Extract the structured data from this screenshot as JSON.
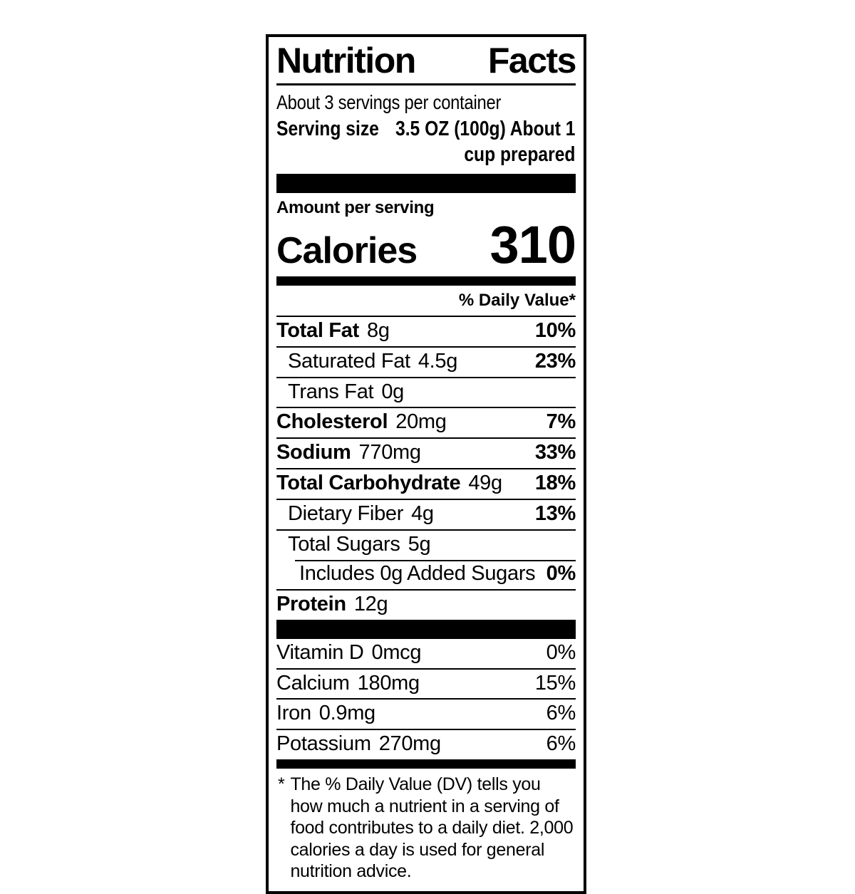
{
  "colors": {
    "ink": "#000000",
    "paper": "#ffffff"
  },
  "label": {
    "title_word_1": "Nutrition",
    "title_word_2": "Facts",
    "servings_per_container": "About 3 servings per container",
    "serving_size": {
      "label": "Serving size",
      "value_line_1": "3.5 OZ (100g) About 1",
      "value_line_2": "cup prepared"
    },
    "amount_per_serving": "Amount per serving",
    "calories": {
      "label": "Calories",
      "value": "310"
    },
    "daily_value_header": "% Daily Value*",
    "nutrients": [
      {
        "name": "Total Fat",
        "amount": "8g",
        "dv": "10%"
      },
      {
        "name": "Saturated Fat",
        "amount": "4.5g",
        "dv": "23%"
      },
      {
        "name": "Trans Fat",
        "amount": "0g",
        "dv": ""
      },
      {
        "name": "Cholesterol",
        "amount": "20mg",
        "dv": "7%"
      },
      {
        "name": "Sodium",
        "amount": "770mg",
        "dv": "33%"
      },
      {
        "name": "Total Carbohydrate",
        "amount": "49g",
        "dv": "18%"
      },
      {
        "name": "Dietary Fiber",
        "amount": "4g",
        "dv": "13%"
      },
      {
        "name": "Total Sugars",
        "amount": "5g",
        "dv": ""
      },
      {
        "name": "Includes 0g Added Sugars",
        "amount": "",
        "dv": "0%"
      },
      {
        "name": "Protein",
        "amount": "12g",
        "dv": ""
      }
    ],
    "vitamins": [
      {
        "name": "Vitamin D",
        "amount": "0mcg",
        "dv": "0%"
      },
      {
        "name": "Calcium",
        "amount": "180mg",
        "dv": "15%"
      },
      {
        "name": "Iron",
        "amount": "0.9mg",
        "dv": "6%"
      },
      {
        "name": "Potassium",
        "amount": "270mg",
        "dv": "6%"
      }
    ],
    "footnote": {
      "marker": "*",
      "text": "The % Daily Value (DV) tells you how much a nutrient in a serving of food contributes to a daily diet. 2,000 calories a day is used for general nutrition advice."
    }
  }
}
